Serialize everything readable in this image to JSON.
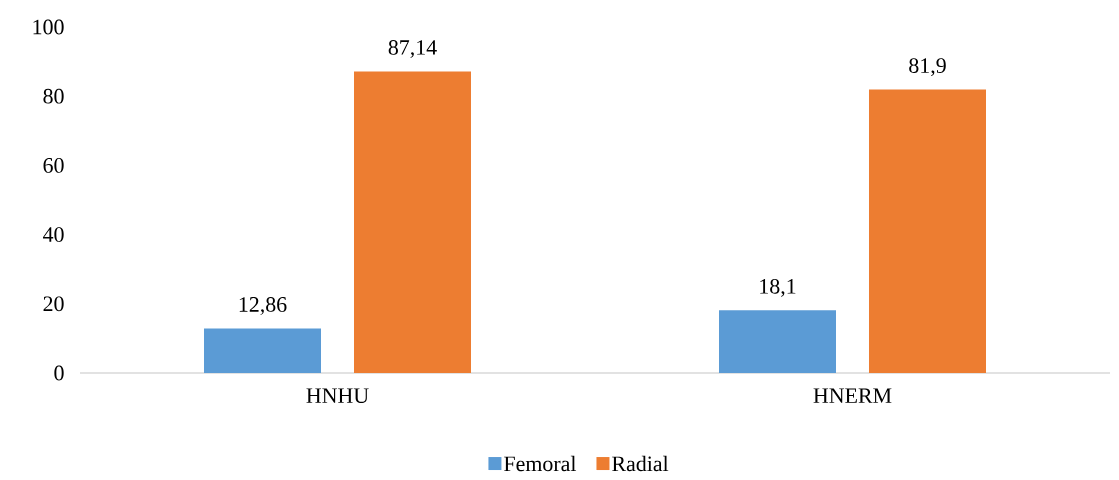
{
  "chart_data": {
    "type": "bar",
    "categories": [
      "HNHU",
      "HNERM"
    ],
    "series": [
      {
        "name": "Femoral",
        "color": "#5b9bd5",
        "values": [
          12.86,
          18.1
        ],
        "value_labels": [
          "12,86",
          "18,1"
        ]
      },
      {
        "name": "Radial",
        "color": "#ed7d31",
        "values": [
          87.14,
          81.9
        ],
        "value_labels": [
          "87,14",
          "81,9"
        ]
      }
    ],
    "ylim": [
      0,
      100
    ],
    "yticks": [
      0,
      20,
      40,
      60,
      80,
      100
    ],
    "grid": false,
    "legend": "bottom"
  }
}
